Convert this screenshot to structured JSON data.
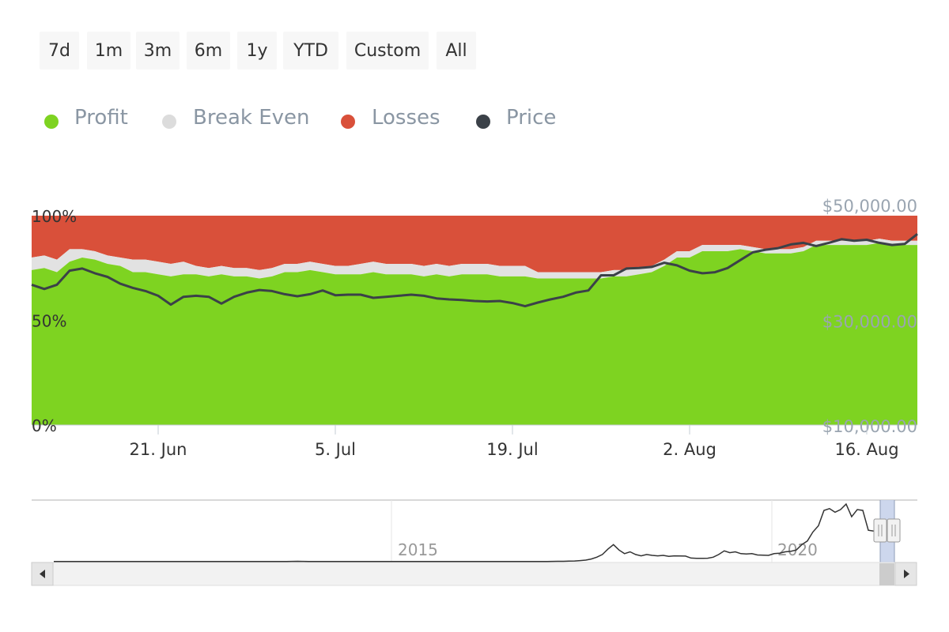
{
  "range_selector": {
    "buttons": [
      "7d",
      "1m",
      "3m",
      "6m",
      "1y",
      "YTD",
      "Custom",
      "All"
    ]
  },
  "legend": [
    {
      "label": "Profit",
      "color": "#7ed321"
    },
    {
      "label": "Break Even",
      "color": "#dcdcdc"
    },
    {
      "label": "Losses",
      "color": "#d9503a"
    },
    {
      "label": "Price",
      "color": "#3b4148"
    }
  ],
  "colors": {
    "profit": "#7ed321",
    "break_even": "#e2e2e2",
    "losses": "#d9503a",
    "price": "#3b4148",
    "axis_text": "#333333",
    "price_axis_text": "#9aa5b1",
    "navigator_mask": "#c4d0ea"
  },
  "chart_data": {
    "type": "area",
    "stacking": "percent",
    "y_left": {
      "ticks": [
        "0%",
        "50%",
        "100%"
      ],
      "values": [
        0,
        50,
        100
      ],
      "range": [
        0,
        100
      ]
    },
    "y_right": {
      "ticks": [
        "$10,000.00",
        "$30,000.00",
        "$50,000.00"
      ],
      "values": [
        10000,
        30000,
        50000
      ],
      "range": [
        10000,
        50000
      ]
    },
    "x_axis": {
      "labels": [
        "21. Jun",
        "5. Jul",
        "19. Jul",
        "2. Aug",
        "16. Aug"
      ],
      "label_day_index": [
        10,
        24,
        38,
        52,
        66
      ]
    },
    "day_count": 71,
    "series": [
      {
        "name": "Profit",
        "unit": "%",
        "values": [
          74,
          75,
          73,
          78,
          80,
          79,
          77,
          76,
          73,
          73,
          72,
          71,
          72,
          72,
          71,
          72,
          71,
          71,
          70,
          71,
          73,
          73,
          74,
          73,
          72,
          72,
          72,
          73,
          72,
          72,
          72,
          71,
          72,
          71,
          72,
          72,
          72,
          71,
          71,
          71,
          70,
          70,
          70,
          70,
          70,
          70,
          71,
          71,
          72,
          73,
          76,
          80,
          80,
          83,
          83,
          83,
          84,
          83,
          82,
          82,
          82,
          83,
          86,
          86,
          86,
          86,
          86,
          87,
          86,
          86,
          86
        ]
      },
      {
        "name": "Break Even",
        "unit": "%",
        "values": [
          6,
          6,
          6,
          6,
          4,
          4,
          4,
          4,
          6,
          6,
          6,
          6,
          6,
          4,
          4,
          4,
          4,
          4,
          4,
          4,
          4,
          4,
          4,
          4,
          4,
          4,
          5,
          5,
          5,
          5,
          5,
          5,
          5,
          5,
          5,
          5,
          5,
          5,
          5,
          5,
          3,
          3,
          3,
          3,
          3,
          3,
          3,
          3,
          3,
          3,
          3,
          3,
          3,
          3,
          3,
          3,
          2,
          2,
          2,
          2,
          2,
          2,
          2,
          2,
          2,
          2,
          2,
          2,
          2,
          2,
          2
        ]
      },
      {
        "name": "Losses",
        "unit": "%",
        "values": [
          20,
          19,
          21,
          16,
          16,
          17,
          19,
          20,
          21,
          21,
          22,
          23,
          22,
          24,
          25,
          24,
          25,
          25,
          26,
          25,
          23,
          23,
          22,
          23,
          24,
          24,
          23,
          22,
          23,
          23,
          23,
          24,
          23,
          24,
          23,
          23,
          23,
          24,
          24,
          24,
          27,
          27,
          27,
          27,
          27,
          27,
          26,
          26,
          25,
          24,
          21,
          17,
          17,
          14,
          14,
          14,
          14,
          15,
          16,
          16,
          16,
          15,
          12,
          12,
          12,
          12,
          12,
          11,
          12,
          12,
          12
        ]
      },
      {
        "name": "Price",
        "unit": "USD",
        "values": [
          36800,
          36000,
          36800,
          39500,
          39900,
          39000,
          38300,
          37000,
          36200,
          35600,
          34700,
          33000,
          34500,
          34700,
          34500,
          33200,
          34500,
          35300,
          35800,
          35600,
          35000,
          34600,
          35000,
          35700,
          34800,
          34900,
          34900,
          34300,
          34500,
          34700,
          34900,
          34700,
          34200,
          34000,
          33900,
          33700,
          33600,
          33700,
          33300,
          32700,
          33400,
          34000,
          34500,
          35300,
          35700,
          38600,
          38600,
          39900,
          40000,
          40200,
          41000,
          40500,
          39500,
          39000,
          39200,
          40000,
          41500,
          43000,
          43500,
          43800,
          44500,
          44800,
          44200,
          44800,
          45500,
          45200,
          45400,
          44800,
          44400,
          44600,
          46500
        ]
      }
    ],
    "navigator": {
      "x_labels": [
        "2015",
        "2020"
      ],
      "price_history_usd": [
        300,
        300,
        300,
        300,
        300,
        300,
        300,
        300,
        300,
        300,
        300,
        300,
        300,
        300,
        300,
        300,
        300,
        300,
        300,
        300,
        300,
        300,
        300,
        300,
        300,
        300,
        300,
        300,
        300,
        300,
        300,
        300,
        300,
        300,
        300,
        300,
        300,
        300,
        300,
        300,
        300,
        300,
        300,
        350,
        400,
        380,
        300,
        300,
        300,
        300,
        300,
        300,
        300,
        300,
        300,
        300,
        300,
        300,
        300,
        300,
        300,
        300,
        300,
        300,
        300,
        300,
        300,
        300,
        300,
        300,
        300,
        300,
        300,
        300,
        300,
        300,
        300,
        300,
        300,
        300,
        300,
        300,
        300,
        300,
        300,
        300,
        300,
        300,
        300,
        300,
        350,
        400,
        450,
        600,
        800,
        1200,
        1800,
        3000,
        5000,
        8000,
        14000,
        19000,
        13000,
        9000,
        11000,
        8000,
        6500,
        8000,
        7000,
        6500,
        7000,
        6000,
        6500,
        6400,
        6200,
        4000,
        3800,
        3700,
        3900,
        5000,
        8000,
        12000,
        10000,
        11000,
        9000,
        8500,
        9000,
        7500,
        7200,
        7000,
        9000,
        9500,
        11000,
        11500,
        13000,
        19000,
        23000,
        33000,
        40000,
        57000,
        59000,
        55000,
        58000,
        64000,
        50000,
        58000,
        57000,
        35000,
        34000,
        33000,
        36000,
        44000,
        47000
      ]
    }
  }
}
